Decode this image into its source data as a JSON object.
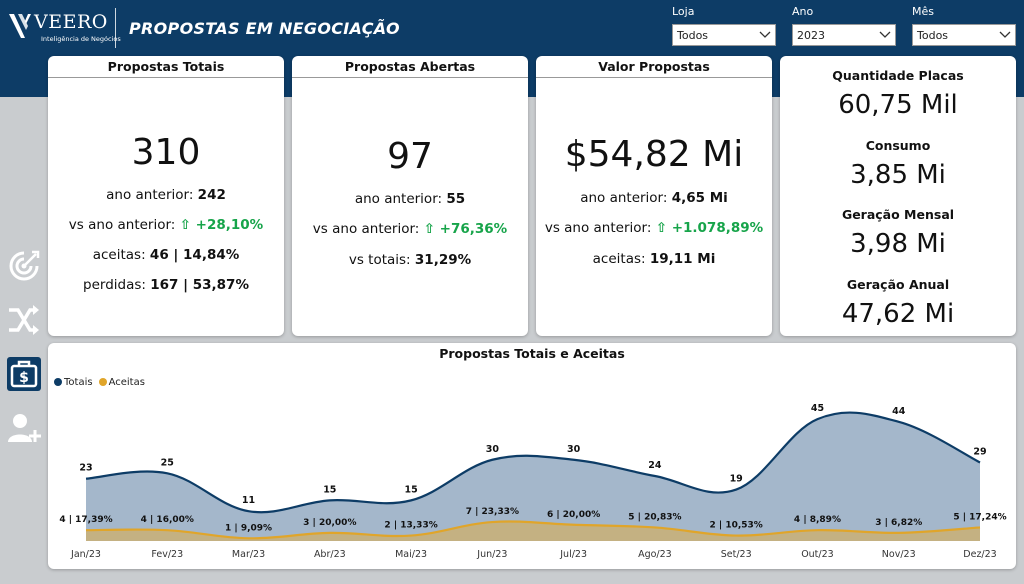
{
  "header": {
    "brand": "VEERO",
    "brand_sub": "Inteligência de Negócios",
    "title": "PROPOSTAS EM NEGOCIAÇÃO"
  },
  "filters": [
    {
      "label": "Loja",
      "value": "Todos"
    },
    {
      "label": "Ano",
      "value": "2023"
    },
    {
      "label": "Mês",
      "value": "Todos"
    }
  ],
  "cards": {
    "totais": {
      "title": "Propostas Totais",
      "value": "310",
      "prev_label": "ano anterior: ",
      "prev_value": "242",
      "vs_label": "vs ano anterior: ",
      "vs_value": "⇧ +28,10%",
      "aceitas_label": "aceitas: ",
      "aceitas_value": "46 | 14,84%",
      "perdidas_label": "perdidas: ",
      "perdidas_value": "167 | 53,87%"
    },
    "abertas": {
      "title": "Propostas Abertas",
      "value": "97",
      "prev_label": "ano anterior: ",
      "prev_value": "55",
      "vs_label": "vs ano anterior: ",
      "vs_value": "⇧ +76,36%",
      "totais_label": "vs totais: ",
      "totais_value": "31,29%"
    },
    "valor": {
      "title": "Valor Propostas",
      "value": "$54,82 Mi",
      "prev_label": "ano anterior: ",
      "prev_value": "4,65 Mi",
      "vs_label": "vs ano anterior: ",
      "vs_value": "⇧ +1.078,89%",
      "aceitas_label": "aceitas: ",
      "aceitas_value": "19,11 Mi"
    },
    "kpis": [
      {
        "label": "Quantidade Placas",
        "value": "60,75 Mil"
      },
      {
        "label": "Consumo",
        "value": "3,85 Mi"
      },
      {
        "label": "Geração Mensal",
        "value": "3,98 Mi"
      },
      {
        "label": "Geração Anual",
        "value": "47,62 Mi"
      }
    ]
  },
  "sidebar": {
    "icons": [
      "target-icon",
      "shuffle-icon",
      "money-briefcase-icon",
      "add-user-icon"
    ]
  },
  "colors": {
    "header": "#0d3c66",
    "totais_line": "#0d3c66",
    "totais_fill": "#9fb3c8",
    "aceitas_line": "#e0a52a",
    "aceitas_fill": "#c8b07a",
    "positive": "#17a44a"
  },
  "chart_data": {
    "type": "area",
    "title": "Propostas Totais e Aceitas",
    "categories": [
      "Jan/23",
      "Fev/23",
      "Mar/23",
      "Abr/23",
      "Mai/23",
      "Jun/23",
      "Jul/23",
      "Ago/23",
      "Set/23",
      "Out/23",
      "Nov/23",
      "Dez/23"
    ],
    "series": [
      {
        "name": "Totais",
        "values": [
          23,
          25,
          11,
          15,
          15,
          30,
          30,
          24,
          19,
          45,
          44,
          29
        ]
      },
      {
        "name": "Aceitas",
        "values": [
          4,
          4,
          1,
          3,
          2,
          7,
          6,
          5,
          2,
          4,
          3,
          5
        ],
        "labels": [
          "4 | 17,39%",
          "4 | 16,00%",
          "1 | 9,09%",
          "3 | 20,00%",
          "2 | 13,33%",
          "7 | 23,33%",
          "6 | 20,00%",
          "5 | 20,83%",
          "2 | 10,53%",
          "4 | 8,89%",
          "3 | 6,82%",
          "5 | 17,24%"
        ]
      }
    ],
    "ylim": [
      0,
      48
    ],
    "legend": "top-left",
    "grid": false
  }
}
